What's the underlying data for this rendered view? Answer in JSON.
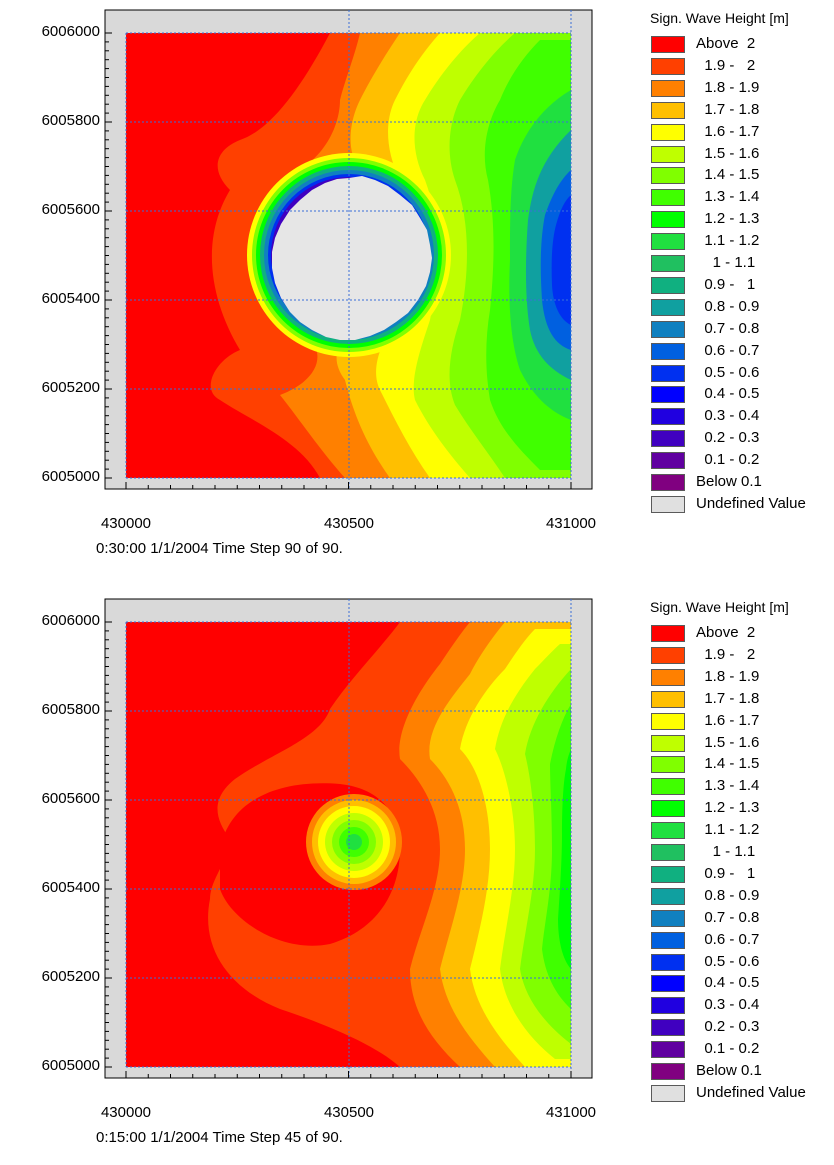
{
  "legend": {
    "title": "Sign. Wave Height [m]",
    "items": [
      {
        "label": "Above  2",
        "color": "#ff0000"
      },
      {
        "label": "  1.9 -   2",
        "color": "#ff4000"
      },
      {
        "label": "  1.8 - 1.9",
        "color": "#ff8000"
      },
      {
        "label": "  1.7 - 1.8",
        "color": "#ffbf00"
      },
      {
        "label": "  1.6 - 1.7",
        "color": "#ffff00"
      },
      {
        "label": "  1.5 - 1.6",
        "color": "#bfff00"
      },
      {
        "label": "  1.4 - 1.5",
        "color": "#80ff00"
      },
      {
        "label": "  1.3 - 1.4",
        "color": "#40ff00"
      },
      {
        "label": "  1.2 - 1.3",
        "color": "#00ff00"
      },
      {
        "label": "  1.1 - 1.2",
        "color": "#20e040"
      },
      {
        "label": "    1 - 1.1",
        "color": "#20c060"
      },
      {
        "label": "  0.9 -   1",
        "color": "#10b080"
      },
      {
        "label": "  0.8 - 0.9",
        "color": "#10a0a0"
      },
      {
        "label": "  0.7 - 0.8",
        "color": "#1080c0"
      },
      {
        "label": "  0.6 - 0.7",
        "color": "#0060e0"
      },
      {
        "label": "  0.5 - 0.6",
        "color": "#0030f0"
      },
      {
        "label": "  0.4 - 0.5",
        "color": "#0000ff"
      },
      {
        "label": "  0.3 - 0.4",
        "color": "#2000e0"
      },
      {
        "label": "  0.2 - 0.3",
        "color": "#4000c0"
      },
      {
        "label": "  0.1 - 0.2",
        "color": "#6000a0"
      },
      {
        "label": "Below 0.1",
        "color": "#800080"
      },
      {
        "label": "Undefined Value",
        "color": "#e0e0e0"
      }
    ]
  },
  "chart_data": [
    {
      "type": "heatmap",
      "caption": "0:30:00 1/1/2004  Time Step 90 of 90.",
      "x_ticks": [
        "430000",
        "430500",
        "431000"
      ],
      "y_ticks": [
        "6006000",
        "6005800",
        "6005600",
        "6005400",
        "6005200",
        "6005000"
      ],
      "xlim": [
        429950,
        431070
      ],
      "ylim": [
        6004950,
        6006050
      ],
      "grid": true,
      "undefined_region": {
        "shape": "circle",
        "center": [
          430500,
          6005490
        ],
        "radius": 210
      },
      "field_summary": {
        "west_side": "Above 2",
        "east_shadow_minimum": "0.5 - 0.6",
        "structure_edge": "0.1 - 0.2"
      }
    },
    {
      "type": "heatmap",
      "caption": "0:15:00 1/1/2004  Time Step 45 of 90.",
      "x_ticks": [
        "430000",
        "430500",
        "431000"
      ],
      "y_ticks": [
        "6006000",
        "6005800",
        "6005600",
        "6005400",
        "6005200",
        "6005000"
      ],
      "xlim": [
        429950,
        431070
      ],
      "ylim": [
        6004950,
        6006050
      ],
      "grid": true,
      "field_summary": {
        "west_side": "Above 2",
        "east_side_minimum": "1.1 - 1.2",
        "center_spot": "1.1 - 1.2"
      }
    }
  ]
}
